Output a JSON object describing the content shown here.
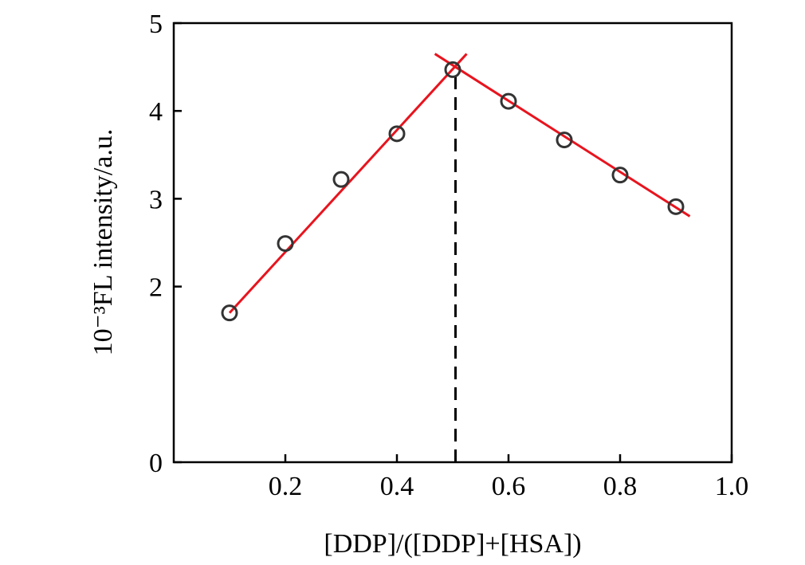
{
  "chart_data": {
    "type": "scatter",
    "xlabel": "[DDP]/([DDP]+[HSA])",
    "ylabel": "10⁻³FL intensity/a.u.",
    "xlim": [
      0,
      1.0
    ],
    "ylim": [
      0,
      5
    ],
    "x_ticks": [
      "0.2",
      "0.4",
      "0.6",
      "0.8",
      "1.0"
    ],
    "y_ticks": [
      "0",
      "2",
      "3",
      "4",
      "5"
    ],
    "grid": false,
    "series": [
      {
        "x": [
          0.1,
          0.2,
          0.3,
          0.4,
          0.5,
          0.6,
          0.7,
          0.8,
          0.9
        ],
        "y": [
          1.7,
          2.49,
          3.22,
          3.74,
          4.47,
          4.11,
          3.67,
          3.27,
          2.91
        ],
        "marker": "open-circle",
        "color": "#333333"
      }
    ],
    "fit_lines": [
      {
        "x": [
          0.1,
          0.525
        ],
        "y": [
          1.7,
          4.65
        ],
        "color": "#e8141e"
      },
      {
        "x": [
          0.468,
          0.925
        ],
        "y": [
          4.65,
          2.8
        ],
        "color": "#e8141e"
      }
    ],
    "reference_line": {
      "x": 0.505,
      "y": [
        0,
        4.47
      ],
      "style": "dashed",
      "color": "#000000"
    }
  }
}
